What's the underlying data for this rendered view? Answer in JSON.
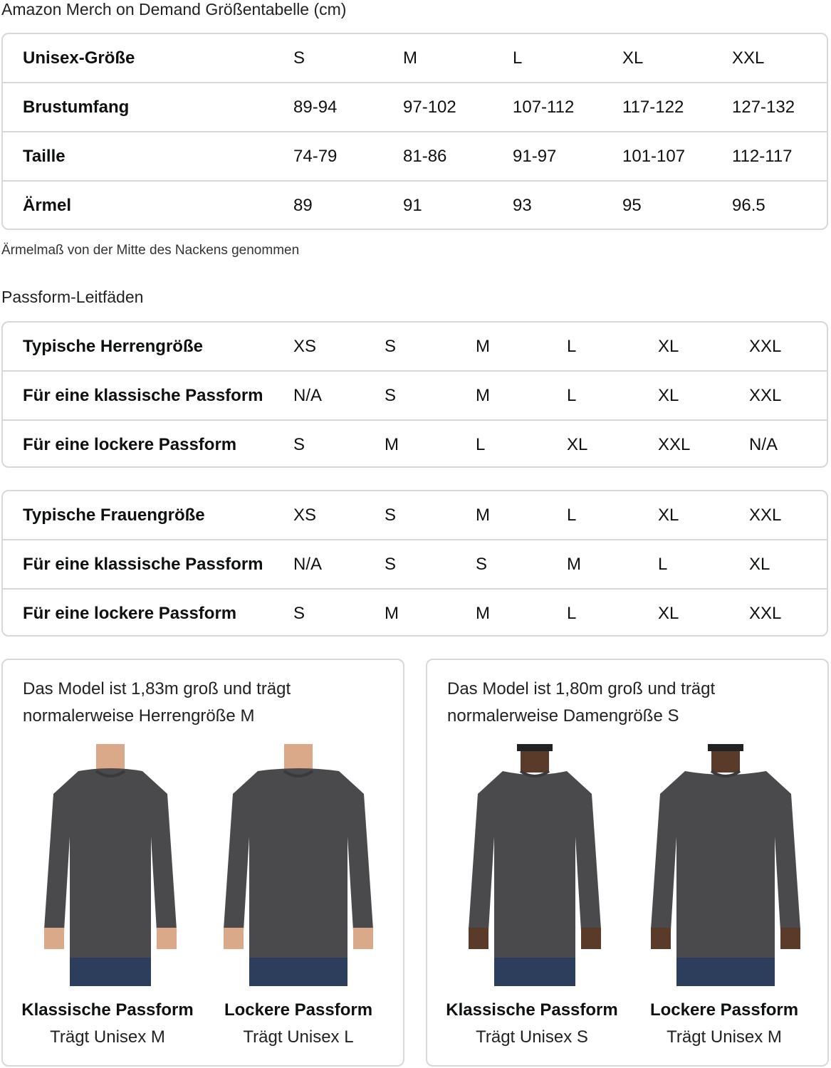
{
  "title": "Amazon Merch on Demand Größentabelle (cm)",
  "unisex_table": {
    "rows": [
      {
        "label": "Unisex-Größe",
        "values": [
          "S",
          "M",
          "L",
          "XL",
          "XXL"
        ]
      },
      {
        "label": "Brustumfang",
        "values": [
          "89-94",
          "97-102",
          "107-112",
          "117-122",
          "127-132"
        ]
      },
      {
        "label": "Taille",
        "values": [
          "74-79",
          "81-86",
          "91-97",
          "101-107",
          "112-117"
        ]
      },
      {
        "label": "Ärmel",
        "values": [
          "89",
          "91",
          "93",
          "95",
          "96.5"
        ]
      }
    ]
  },
  "sleeve_note": "Ärmelmaß von der Mitte des Nackens genommen",
  "fit_guide_title": "Passform-Leitfäden",
  "men_table": {
    "rows": [
      {
        "label": "Typische Herrengröße",
        "values": [
          "XS",
          "S",
          "M",
          "L",
          "XL",
          "XXL"
        ]
      },
      {
        "label": "Für eine klassische Passform",
        "values": [
          "N/A",
          "S",
          "M",
          "L",
          "XL",
          "XXL"
        ]
      },
      {
        "label": "Für eine lockere Passform",
        "values": [
          "S",
          "M",
          "L",
          "XL",
          "XXL",
          "N/A"
        ]
      }
    ]
  },
  "women_table": {
    "rows": [
      {
        "label": "Typische Frauengröße",
        "values": [
          "XS",
          "S",
          "M",
          "L",
          "XL",
          "XXL"
        ]
      },
      {
        "label": "Für eine klassische Passform",
        "values": [
          "N/A",
          "S",
          "S",
          "M",
          "L",
          "XL"
        ]
      },
      {
        "label": "Für eine lockere Passform",
        "values": [
          "S",
          "M",
          "M",
          "L",
          "XL",
          "XXL"
        ]
      }
    ]
  },
  "cards": [
    {
      "title": "Das Model ist 1,83m groß und trägt normalerweise Herrengröße M",
      "fits": [
        {
          "name": "Klassische Passform",
          "wears": "Trägt Unisex M"
        },
        {
          "name": "Lockere Passform",
          "wears": "Trägt Unisex L"
        }
      ]
    },
    {
      "title": "Das Model ist 1,80m groß und trägt normalerweise Damengröße S",
      "fits": [
        {
          "name": "Klassische Passform",
          "wears": "Trägt Unisex S"
        },
        {
          "name": "Lockere Passform",
          "wears": "Trägt Unisex M"
        }
      ]
    }
  ],
  "colors": {
    "border": "#d5d9d9",
    "sweater": "#4a4a4c",
    "jeans": "#2c3e5c"
  }
}
